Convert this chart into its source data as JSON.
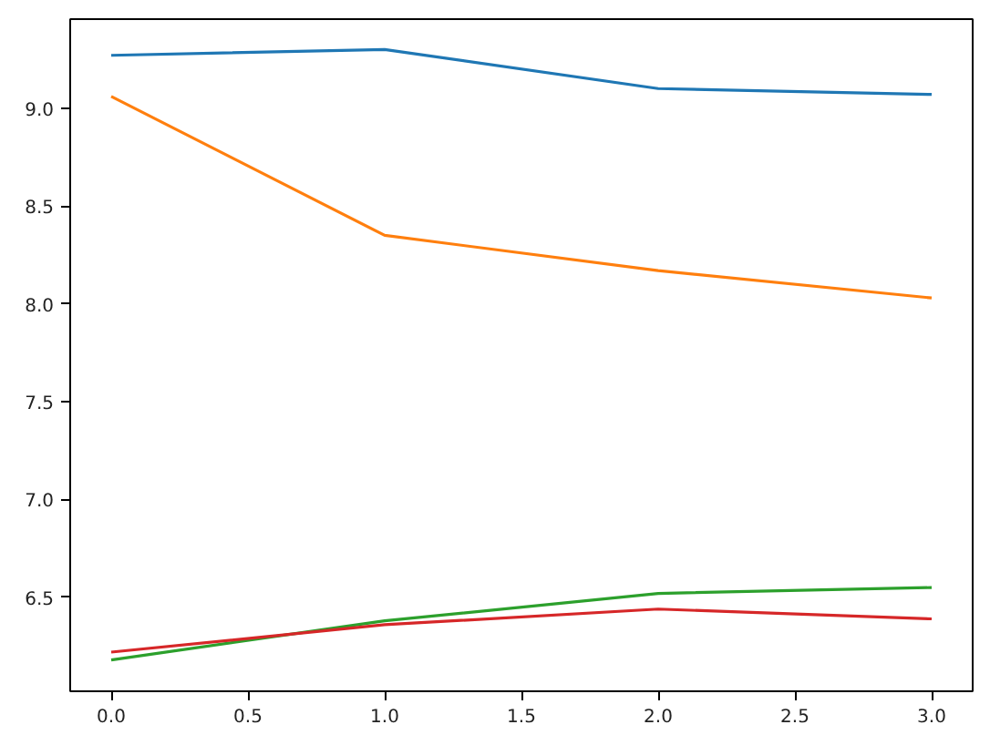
{
  "chart_data": {
    "type": "line",
    "x": [
      0,
      1,
      2,
      3
    ],
    "series": [
      {
        "color": "#1f77b4",
        "values": [
          9.27,
          9.3,
          9.1,
          9.07
        ]
      },
      {
        "color": "#ff7f0e",
        "values": [
          9.06,
          8.35,
          8.17,
          8.03
        ]
      },
      {
        "color": "#2ca02c",
        "values": [
          6.18,
          6.38,
          6.52,
          6.55
        ]
      },
      {
        "color": "#d62728",
        "values": [
          6.22,
          6.36,
          6.44,
          6.39
        ]
      }
    ],
    "xlim": [
      -0.15,
      3.15
    ],
    "ylim": [
      6.02,
      9.455
    ],
    "xticks": [
      {
        "value": 0,
        "label": "0.0"
      },
      {
        "value": 0.5,
        "label": "0.5"
      },
      {
        "value": 1,
        "label": "1.0"
      },
      {
        "value": 1.5,
        "label": "1.5"
      },
      {
        "value": 2,
        "label": "2.0"
      },
      {
        "value": 2.5,
        "label": "2.5"
      },
      {
        "value": 3,
        "label": "3.0"
      }
    ],
    "yticks": [
      {
        "value": 6.5,
        "label": "6.5"
      },
      {
        "value": 7,
        "label": "7.0"
      },
      {
        "value": 7.5,
        "label": "7.5"
      },
      {
        "value": 8,
        "label": "8.0"
      },
      {
        "value": 8.5,
        "label": "8.5"
      },
      {
        "value": 9,
        "label": "9.0"
      }
    ],
    "grid": false
  }
}
